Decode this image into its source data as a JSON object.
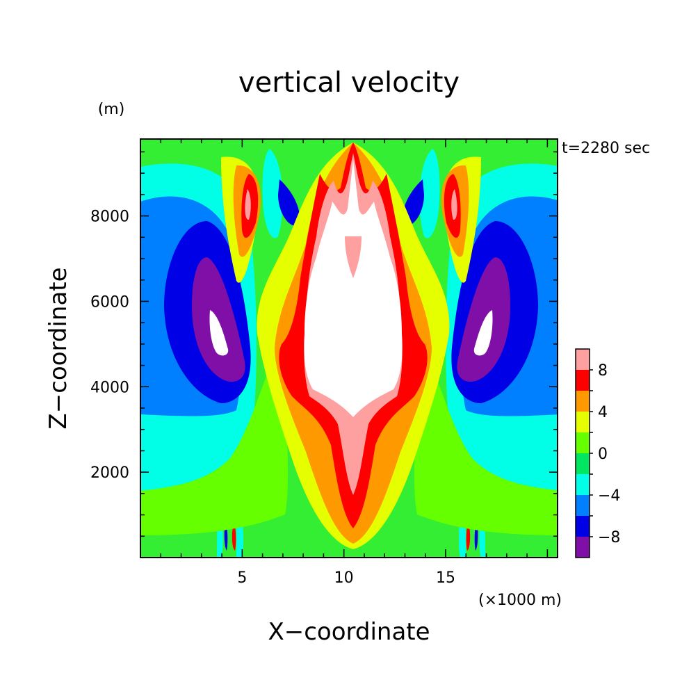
{
  "chart_data": {
    "type": "contour",
    "title": "vertical velocity",
    "time_label": "t=2280 sec",
    "ylabel": "Z−coordinate",
    "xlabel": "X−coordinate",
    "yunit": "(m)",
    "xunit": "(×1000 m)",
    "xlim": [
      0,
      20.5
    ],
    "ylim": [
      0,
      9800
    ],
    "x_ticks": [
      5,
      10,
      15
    ],
    "x_tick_labels": [
      "5",
      "10",
      "15"
    ],
    "y_ticks": [
      2000,
      4000,
      6000,
      8000
    ],
    "y_tick_labels": [
      "2000",
      "4000",
      "6000",
      "8000"
    ],
    "colorbar": {
      "levels": [
        -10,
        -8,
        -6,
        -4,
        -2,
        0,
        2,
        4,
        6,
        8,
        10
      ],
      "tick_labels": [
        "−8",
        "−4",
        "0",
        "4",
        "8"
      ],
      "tick_values": [
        -8,
        -4,
        0,
        4,
        8
      ],
      "colors": [
        "#7f0fa6",
        "#0000e6",
        "#0080ff",
        "#00ffe6",
        "#00e660",
        "#66ff00",
        "#e6ff00",
        "#ff9900",
        "#ff0000",
        "#ffa0a0"
      ]
    },
    "colors": {
      "background_field": "#33ee33",
      "white_core": "#ffffff"
    }
  }
}
